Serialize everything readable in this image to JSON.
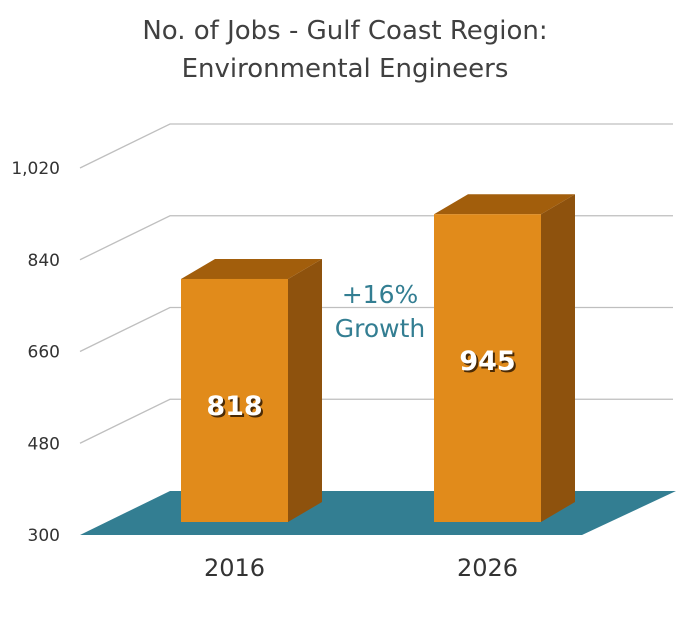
{
  "chart_data": {
    "type": "bar",
    "title_lines": [
      "No. of Jobs - Gulf Coast Region:",
      "Environmental Engineers"
    ],
    "categories": [
      "2016",
      "2026"
    ],
    "values": [
      818,
      945
    ],
    "value_labels": [
      "818",
      "945"
    ],
    "yticks": [
      300,
      480,
      660,
      840,
      1020
    ],
    "ytick_labels": [
      "300",
      "480",
      "660",
      "840",
      "1,020"
    ],
    "ylim": [
      300,
      1020
    ],
    "xlabel": "",
    "ylabel": "",
    "grid": true,
    "annotation": {
      "lines": [
        "+16%",
        "Growth"
      ]
    },
    "colors": {
      "bar_front": "#E18B1B",
      "bar_top": "#A25E0C",
      "bar_side": "#8E520D",
      "floor": "#337E92",
      "grid": "#BFBFBF",
      "annotation": "#337E92"
    }
  }
}
